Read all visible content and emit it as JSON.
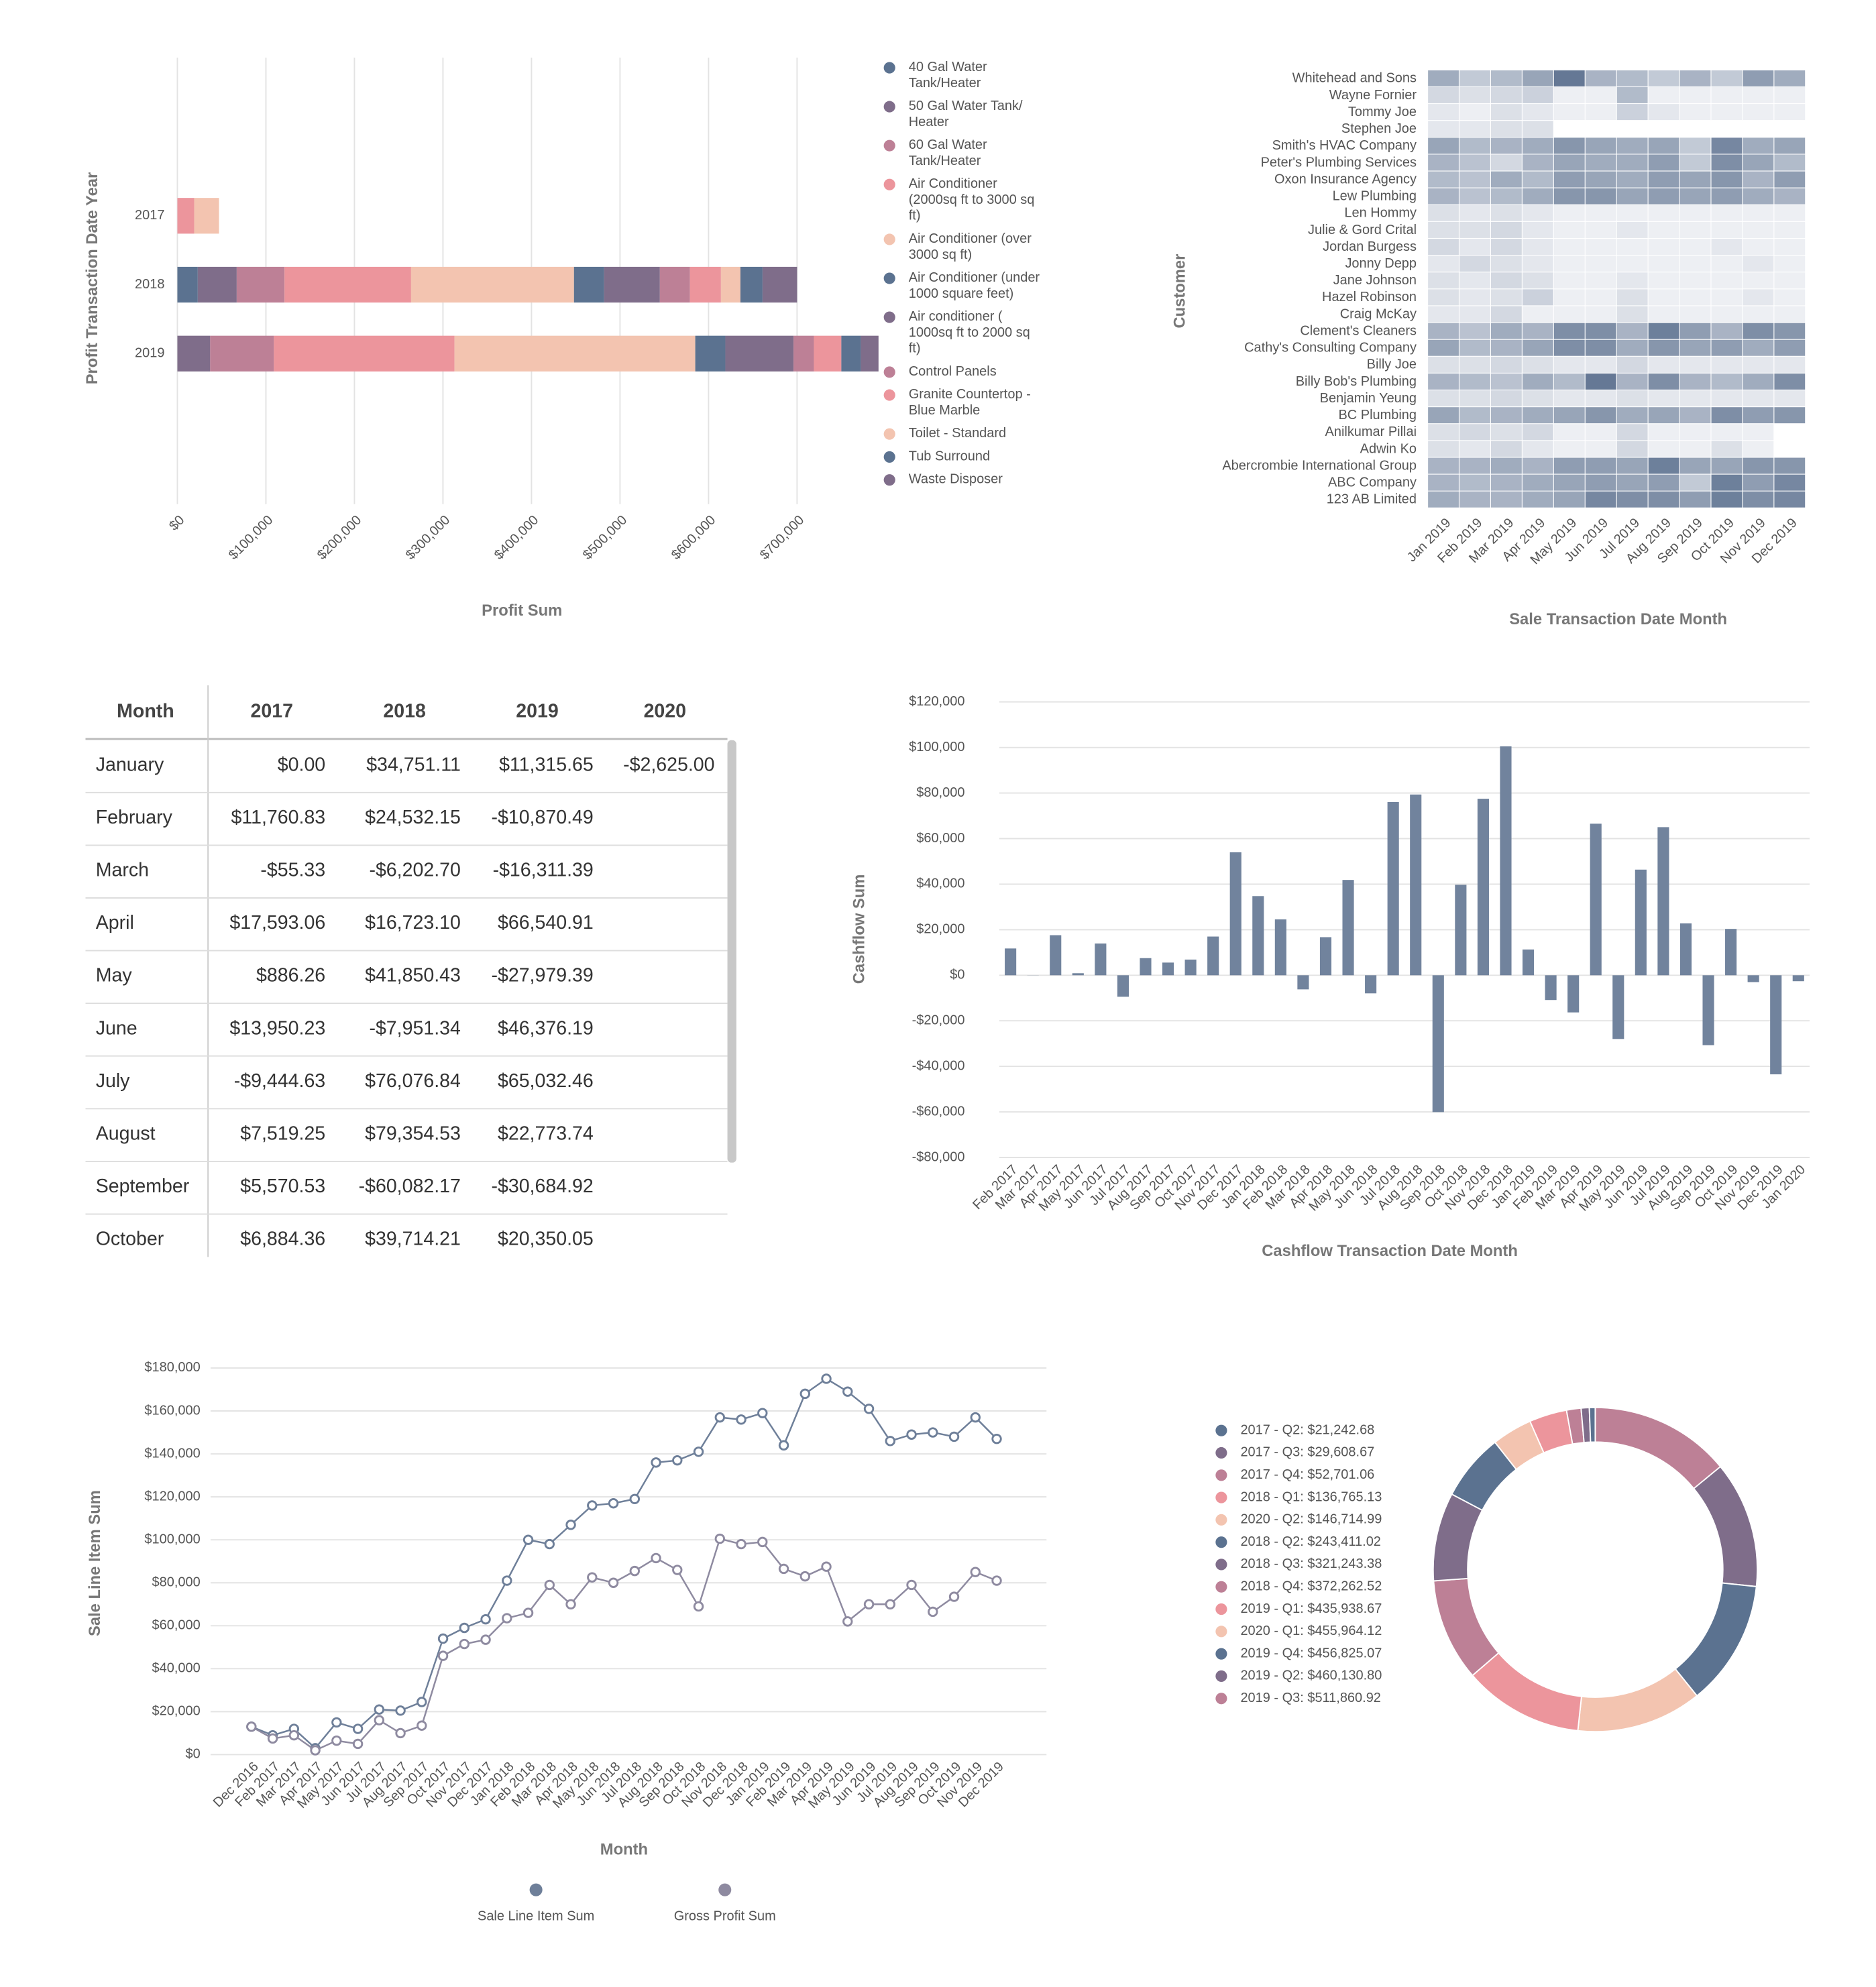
{
  "chart_data": [
    {
      "type": "stacked_hbar",
      "ylabel": "Profit Transaction Date Year",
      "xlabel": "Profit Sum",
      "categories": [
        "2017",
        "2018",
        "2019"
      ],
      "xlim": [
        0,
        790000
      ],
      "xticks": [
        {
          "value": 0,
          "label": "$0"
        },
        {
          "value": 100000,
          "label": "$100,000"
        },
        {
          "value": 200000,
          "label": "$200,000"
        },
        {
          "value": 300000,
          "label": "$300,000"
        },
        {
          "value": 400000,
          "label": "$400,000"
        },
        {
          "value": 500000,
          "label": "$500,000"
        },
        {
          "value": 600000,
          "label": "$600,000"
        },
        {
          "value": 700000,
          "label": "$700,000"
        }
      ],
      "grid": true,
      "series": [
        {
          "name": "40 Gal Water Tank/Heater",
          "color": "#5b7290",
          "values": [
            null,
            23000,
            null
          ]
        },
        {
          "name": "50 Gal Water Tank/ Heater",
          "color": "#7f6d8a",
          "values": [
            null,
            44000,
            37000
          ]
        },
        {
          "name": "60 Gal Water Tank/Heater",
          "color": "#bd8096",
          "values": [
            null,
            54000,
            72000
          ]
        },
        {
          "name": "Air Conditioner (2000sq ft to 3000 sq ft)",
          "color": "#ec959c",
          "values": [
            19000,
            143000,
            204000
          ]
        },
        {
          "name": "Air Conditioner (over 3000 sq ft)",
          "color": "#f3c4b0",
          "values": [
            28000,
            184000,
            272000
          ]
        },
        {
          "name": "Air Conditioner (under 1000 square feet)",
          "color": "#5b7290",
          "values": [
            null,
            34000,
            34000
          ]
        },
        {
          "name": "Air conditioner ( 1000sq ft to 2000 sq ft)",
          "color": "#7f6d8a",
          "values": [
            null,
            63000,
            77000
          ]
        },
        {
          "name": "Control Panels",
          "color": "#bd8096",
          "values": [
            null,
            34000,
            23000
          ]
        },
        {
          "name": "Granite Countertop - Blue Marble",
          "color": "#ec959c",
          "values": [
            null,
            35000,
            31000
          ]
        },
        {
          "name": "Toilet - Standard",
          "color": "#f3c4b0",
          "values": [
            null,
            22000,
            null
          ]
        },
        {
          "name": "Tub Surround",
          "color": "#5b7290",
          "values": [
            null,
            25000,
            22000
          ]
        },
        {
          "name": "Waste Disposer",
          "color": "#7f6d8a",
          "values": [
            null,
            39000,
            20000
          ]
        }
      ]
    },
    {
      "type": "heatmap",
      "ylabel": "Customer",
      "xlabel": "Sale Transaction Date Month",
      "x": [
        "Jan 2019",
        "Feb 2019",
        "Mar 2019",
        "Apr 2019",
        "May 2019",
        "Jun 2019",
        "Jul 2019",
        "Aug 2019",
        "Sep 2019",
        "Oct 2019",
        "Nov 2019",
        "Dec 2019"
      ],
      "y": [
        "Whitehead and Sons",
        "Wayne Fornier",
        "Tommy Joe",
        "Stephen Joe",
        "Smith's HVAC Company",
        "Peter's Plumbing Services",
        "Oxon Insurance Agency",
        "Lew Plumbing",
        "Len Hommy",
        "Julie & Gord Crital",
        "Jordan Burgess",
        "Jonny Depp",
        "Jane Johnson",
        "Hazel Robinson",
        "Craig McKay",
        "Clement's Cleaners",
        "Cathy's Consulting Company",
        "Billy Joe",
        "Billy Bob's Plumbing",
        "Benjamin Yeung",
        "BC Plumbing",
        "Anilkumar Pillai",
        "Adwin Ko",
        "Abercrombie International Group",
        "ABC Company",
        "123 AB Limited"
      ],
      "colors": [
        "#f5f6f9",
        "#4b6283"
      ],
      "zlim": [
        0,
        100
      ],
      "values": [
        [
          50,
          30,
          40,
          55,
          85,
          45,
          40,
          30,
          45,
          30,
          60,
          50
        ],
        [
          20,
          15,
          20,
          25,
          5,
          5,
          40,
          5,
          5,
          5,
          5,
          5
        ],
        [
          10,
          5,
          15,
          10,
          5,
          5,
          25,
          10,
          5,
          5,
          5,
          5
        ],
        [
          10,
          10,
          15,
          15,
          null,
          null,
          null,
          null,
          null,
          null,
          null,
          null
        ],
        [
          55,
          40,
          45,
          50,
          65,
          55,
          50,
          55,
          30,
          75,
          50,
          55
        ],
        [
          45,
          35,
          20,
          45,
          55,
          50,
          50,
          60,
          30,
          70,
          55,
          40
        ],
        [
          40,
          35,
          50,
          40,
          60,
          55,
          50,
          60,
          55,
          65,
          45,
          60
        ],
        [
          45,
          35,
          40,
          50,
          65,
          65,
          55,
          60,
          55,
          60,
          50,
          45
        ],
        [
          15,
          10,
          15,
          10,
          5,
          5,
          5,
          5,
          5,
          5,
          5,
          5
        ],
        [
          15,
          15,
          20,
          10,
          5,
          5,
          10,
          5,
          5,
          5,
          5,
          5
        ],
        [
          20,
          10,
          20,
          10,
          5,
          5,
          5,
          5,
          5,
          10,
          5,
          5
        ],
        [
          10,
          20,
          15,
          10,
          5,
          5,
          5,
          5,
          5,
          5,
          10,
          5
        ],
        [
          15,
          10,
          20,
          15,
          5,
          5,
          10,
          5,
          5,
          5,
          5,
          5
        ],
        [
          15,
          10,
          15,
          25,
          5,
          5,
          15,
          5,
          5,
          5,
          10,
          5
        ],
        [
          10,
          10,
          20,
          5,
          5,
          5,
          15,
          5,
          5,
          5,
          5,
          5
        ],
        [
          45,
          35,
          50,
          45,
          70,
          70,
          45,
          80,
          60,
          45,
          70,
          65
        ],
        [
          55,
          40,
          45,
          55,
          70,
          70,
          50,
          65,
          55,
          60,
          50,
          60
        ],
        [
          15,
          15,
          20,
          15,
          10,
          10,
          20,
          10,
          10,
          10,
          10,
          10
        ],
        [
          45,
          40,
          35,
          50,
          40,
          85,
          45,
          70,
          45,
          40,
          50,
          70
        ],
        [
          15,
          15,
          20,
          15,
          10,
          10,
          15,
          10,
          10,
          10,
          10,
          10
        ],
        [
          55,
          40,
          45,
          50,
          55,
          65,
          50,
          55,
          45,
          70,
          60,
          65
        ],
        [
          15,
          20,
          15,
          20,
          5,
          5,
          20,
          5,
          5,
          5,
          5,
          null
        ],
        [
          15,
          10,
          20,
          10,
          5,
          5,
          20,
          5,
          5,
          15,
          5,
          null
        ],
        [
          45,
          45,
          50,
          45,
          60,
          60,
          55,
          80,
          55,
          55,
          65,
          65
        ],
        [
          45,
          40,
          45,
          50,
          55,
          60,
          55,
          60,
          30,
          80,
          60,
          75
        ],
        [
          50,
          45,
          45,
          50,
          55,
          75,
          70,
          70,
          60,
          80,
          70,
          75
        ]
      ]
    },
    {
      "type": "bar",
      "ylabel": "Cashflow Sum",
      "xlabel": "Cashflow Transaction Date Month",
      "color": "#71839d",
      "categories": [
        "Feb 2017",
        "Mar 2017",
        "Apr 2017",
        "May 2017",
        "Jun 2017",
        "Jul 2017",
        "Aug 2017",
        "Sep 2017",
        "Oct 2017",
        "Nov 2017",
        "Dec 2017",
        "Jan 2018",
        "Feb 2018",
        "Mar 2018",
        "Apr 2018",
        "May 2018",
        "Jun 2018",
        "Jul 2018",
        "Aug 2018",
        "Sep 2018",
        "Oct 2018",
        "Nov 2018",
        "Dec 2018",
        "Jan 2019",
        "Feb 2019",
        "Mar 2019",
        "Apr 2019",
        "May 2019",
        "Jun 2019",
        "Jul 2019",
        "Aug 2019",
        "Sep 2019",
        "Oct 2019",
        "Nov 2019",
        "Dec 2019",
        "Jan 2020"
      ],
      "values": [
        11760.83,
        -55.33,
        17593.06,
        886.26,
        13950.23,
        -9444.63,
        7519.25,
        5570.53,
        6884.36,
        17000,
        54000,
        34751.11,
        24532.15,
        -6202.7,
        16723.1,
        41850.43,
        -7951.34,
        76076.84,
        79354.53,
        -60082.17,
        39714.21,
        77500,
        100500,
        11315.65,
        -10870.49,
        -16311.39,
        66540.91,
        -27979.39,
        46376.19,
        65032.46,
        22773.74,
        -30684.92,
        20350.05,
        -3000,
        -43500,
        -2625.0
      ],
      "ylim": [
        -80000,
        120000
      ],
      "yticks": [
        {
          "value": -80000,
          "label": "-$80,000"
        },
        {
          "value": -60000,
          "label": "-$60,000"
        },
        {
          "value": -40000,
          "label": "-$40,000"
        },
        {
          "value": -20000,
          "label": "-$20,000"
        },
        {
          "value": 0,
          "label": "$0"
        },
        {
          "value": 20000,
          "label": "$20,000"
        },
        {
          "value": 40000,
          "label": "$40,000"
        },
        {
          "value": 60000,
          "label": "$60,000"
        },
        {
          "value": 80000,
          "label": "$80,000"
        },
        {
          "value": 100000,
          "label": "$100,000"
        },
        {
          "value": 120000,
          "label": "$120,000"
        }
      ],
      "grid": true
    },
    {
      "type": "line",
      "ylabel": "Sale Line Item Sum",
      "xlabel": "Month",
      "categories": [
        "Dec 2016",
        "Feb 2017",
        "Mar 2017",
        "Apr 2017",
        "May 2017",
        "Jun 2017",
        "Jul 2017",
        "Aug 2017",
        "Sep 2017",
        "Oct 2017",
        "Nov 2017",
        "Dec 2017",
        "Jan 2018",
        "Feb 2018",
        "Mar 2018",
        "Apr 2018",
        "May 2018",
        "Jun 2018",
        "Jul 2018",
        "Aug 2018",
        "Sep 2018",
        "Oct 2018",
        "Nov 2018",
        "Dec 2018",
        "Jan 2019",
        "Feb 2019",
        "Mar 2019",
        "Apr 2019",
        "May 2019",
        "Jun 2019",
        "Jul 2019",
        "Aug 2019",
        "Sep 2019",
        "Oct 2019",
        "Nov 2019",
        "Dec 2019"
      ],
      "series": [
        {
          "name": "Sale Line Item Sum",
          "color": "#6e7f99",
          "values": [
            13000,
            9000,
            12000,
            3000,
            15000,
            12000,
            21000,
            20500,
            24500,
            54000,
            59000,
            63000,
            81000,
            100000,
            98000,
            107000,
            116000,
            117000,
            119000,
            136000,
            137000,
            141000,
            157000,
            156000,
            159000,
            144000,
            168000,
            175000,
            169000,
            161000,
            146000,
            149000,
            150000,
            148000,
            157000,
            147000
          ]
        },
        {
          "name": "Gross Profit Sum",
          "color": "#8e8aa0",
          "values": [
            13000,
            7500,
            9000,
            2000,
            6500,
            5000,
            16000,
            10000,
            13500,
            46000,
            51500,
            53500,
            63500,
            66000,
            79000,
            70000,
            82500,
            80000,
            85500,
            91500,
            86000,
            69000,
            100500,
            98000,
            99000,
            86500,
            83000,
            87500,
            62000,
            70000,
            70000,
            79000,
            66500,
            73500,
            85000,
            81000
          ]
        }
      ],
      "ylim": [
        0,
        180000
      ],
      "yticks": [
        {
          "value": 0,
          "label": "$0"
        },
        {
          "value": 20000,
          "label": "$20,000"
        },
        {
          "value": 40000,
          "label": "$40,000"
        },
        {
          "value": 60000,
          "label": "$60,000"
        },
        {
          "value": 80000,
          "label": "$80,000"
        },
        {
          "value": 100000,
          "label": "$100,000"
        },
        {
          "value": 120000,
          "label": "$120,000"
        },
        {
          "value": 140000,
          "label": "$140,000"
        },
        {
          "value": 160000,
          "label": "$160,000"
        },
        {
          "value": 180000,
          "label": "$180,000"
        }
      ],
      "grid": true,
      "legend": "bottom"
    },
    {
      "type": "donut",
      "categories": [
        "2017 - Q2: $21,242.68",
        "2017 - Q3: $29,608.67",
        "2017 - Q4: $52,701.06",
        "2018 - Q1: $136,765.13",
        "2020 - Q2: $146,714.99",
        "2018 - Q2: $243,411.02",
        "2018 - Q3: $321,243.38",
        "2018 - Q4: $372,262.52",
        "2019 - Q1: $435,938.67",
        "2020 - Q1: $455,964.12",
        "2019 - Q4: $456,825.07",
        "2019 - Q2: $460,130.80",
        "2019 - Q3: $511,860.92"
      ],
      "values": [
        21242.68,
        29608.67,
        52701.06,
        136765.13,
        146714.99,
        243411.02,
        321243.38,
        372262.52,
        435938.67,
        455964.12,
        456825.07,
        460130.8,
        511860.92
      ],
      "colors": [
        "#5b7290",
        "#7f6d8a",
        "#bd8096",
        "#ec959c",
        "#f3c4b0",
        "#5b7290",
        "#7f6d8a",
        "#bd8096",
        "#ec959c",
        "#f3c4b0",
        "#5b7290",
        "#7f6d8a",
        "#bd8096"
      ],
      "legend": "left"
    }
  ],
  "table": {
    "header": [
      "Month",
      "2017",
      "2018",
      "2019",
      "2020"
    ],
    "rows": [
      [
        "January",
        "$0.00",
        "$34,751.11",
        "$11,315.65",
        "-$2,625.00"
      ],
      [
        "February",
        "$11,760.83",
        "$24,532.15",
        "-$10,870.49"
      ],
      [
        "March",
        "-$55.33",
        "-$6,202.70",
        "-$16,311.39"
      ],
      [
        "April",
        "$17,593.06",
        "$16,723.10",
        "$66,540.91"
      ],
      [
        "May",
        "$886.26",
        "$41,850.43",
        "-$27,979.39"
      ],
      [
        "June",
        "$13,950.23",
        "-$7,951.34",
        "$46,376.19"
      ],
      [
        "July",
        "-$9,444.63",
        "$76,076.84",
        "$65,032.46"
      ],
      [
        "August",
        "$7,519.25",
        "$79,354.53",
        "$22,773.74"
      ],
      [
        "September",
        "$5,570.53",
        "-$60,082.17",
        "-$30,684.92"
      ],
      [
        "October",
        "$6,884.36",
        "$39,714.21",
        "$20,350.05"
      ]
    ]
  }
}
